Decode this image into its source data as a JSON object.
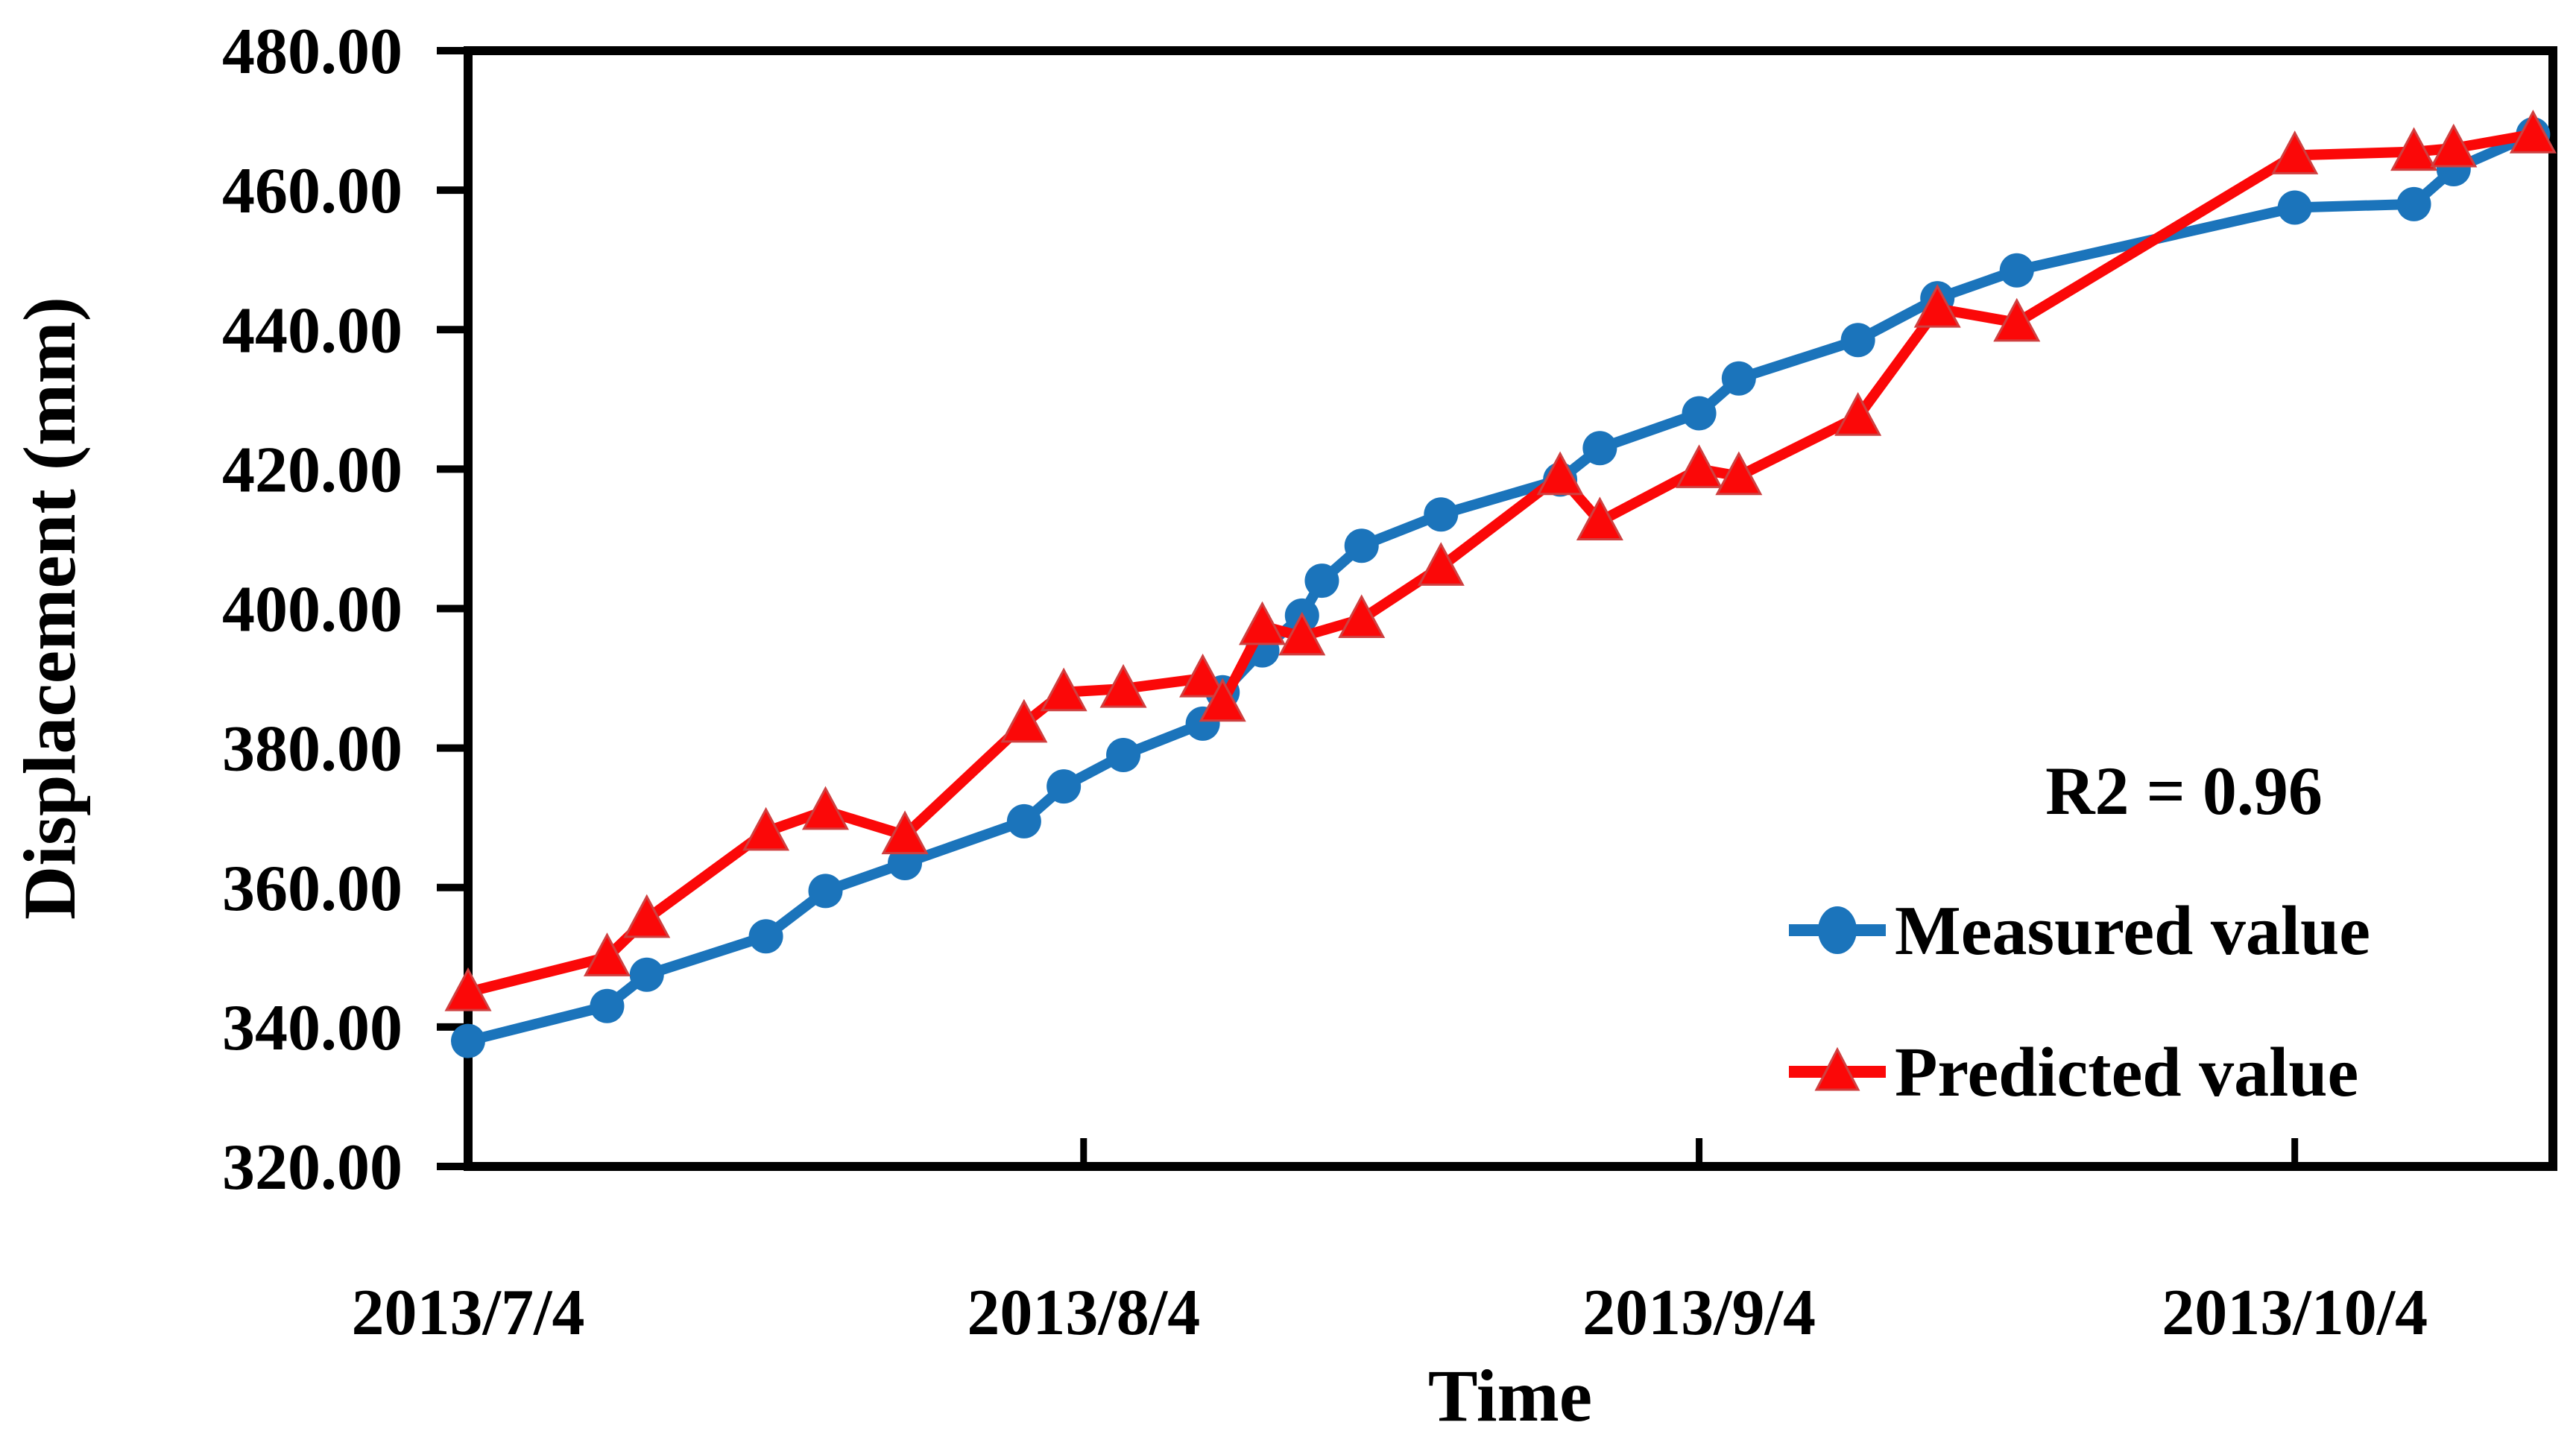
{
  "chart": {
    "ylabel": "Displacement  (mm)",
    "xlabel": "Time",
    "annotation": "R2 = 0.96",
    "legend": [
      {
        "label": "Measured value",
        "marker": "circle"
      },
      {
        "label": "Predicted value",
        "marker": "triangle"
      }
    ]
  },
  "chart_data": {
    "type": "line",
    "title": "",
    "xlabel": "Time",
    "ylabel": "Displacement  (mm)",
    "annotation": "R2 = 0.96",
    "grid": false,
    "legend_position": "lower right inside",
    "x_unit": "days since 2013/7/4",
    "xlim": [
      0,
      105
    ],
    "ylim": [
      320,
      480
    ],
    "y_tick_step": 20,
    "y_tick_labels": [
      "320.00",
      "340.00",
      "360.00",
      "380.00",
      "400.00",
      "420.00",
      "440.00",
      "460.00",
      "480.00"
    ],
    "x_ticks": [
      {
        "day": 0,
        "label": "2013/7/4"
      },
      {
        "day": 31,
        "label": "2013/8/4"
      },
      {
        "day": 62,
        "label": "2013/9/4"
      },
      {
        "day": 92,
        "label": "2013/10/4"
      }
    ],
    "series": [
      {
        "name": "Measured value",
        "color": "#1b74bb",
        "marker": "circle",
        "points": [
          {
            "date": "2013/7/4",
            "day": 0,
            "value": 338.0
          },
          {
            "date": "2013/7/11",
            "day": 7,
            "value": 343.0
          },
          {
            "date": "2013/7/13",
            "day": 9,
            "value": 347.5
          },
          {
            "date": "2013/7/19",
            "day": 15,
            "value": 353.0
          },
          {
            "date": "2013/7/22",
            "day": 18,
            "value": 359.5
          },
          {
            "date": "2013/7/26",
            "day": 22,
            "value": 363.5
          },
          {
            "date": "2013/8/1",
            "day": 28,
            "value": 369.5
          },
          {
            "date": "2013/8/3",
            "day": 30,
            "value": 374.5
          },
          {
            "date": "2013/8/6",
            "day": 33,
            "value": 379.0
          },
          {
            "date": "2013/8/10",
            "day": 37,
            "value": 383.5
          },
          {
            "date": "2013/8/11",
            "day": 38,
            "value": 388.0
          },
          {
            "date": "2013/8/13",
            "day": 40,
            "value": 394.0
          },
          {
            "date": "2013/8/15",
            "day": 42,
            "value": 399.0
          },
          {
            "date": "2013/8/16",
            "day": 43,
            "value": 404.0
          },
          {
            "date": "2013/8/18",
            "day": 45,
            "value": 409.0
          },
          {
            "date": "2013/8/22",
            "day": 49,
            "value": 413.5
          },
          {
            "date": "2013/8/28",
            "day": 55,
            "value": 418.5
          },
          {
            "date": "2013/8/30",
            "day": 57,
            "value": 423.0
          },
          {
            "date": "2013/9/4",
            "day": 62,
            "value": 428.0
          },
          {
            "date": "2013/9/6",
            "day": 64,
            "value": 433.0
          },
          {
            "date": "2013/9/12",
            "day": 70,
            "value": 438.5
          },
          {
            "date": "2013/9/16",
            "day": 74,
            "value": 444.5
          },
          {
            "date": "2013/9/20",
            "day": 78,
            "value": 448.5
          },
          {
            "date": "2013/10/4",
            "day": 92,
            "value": 457.5
          },
          {
            "date": "2013/10/10",
            "day": 98,
            "value": 458.0
          },
          {
            "date": "2013/10/12",
            "day": 100,
            "value": 463.0
          },
          {
            "date": "2013/10/16",
            "day": 104,
            "value": 468.0
          }
        ]
      },
      {
        "name": "Predicted value",
        "color": "#fb0808",
        "marker": "triangle",
        "points": [
          {
            "date": "2013/7/4",
            "day": 0,
            "value": 345.0
          },
          {
            "date": "2013/7/11",
            "day": 7,
            "value": 350.0
          },
          {
            "date": "2013/7/13",
            "day": 9,
            "value": 355.5
          },
          {
            "date": "2013/7/19",
            "day": 15,
            "value": 368.0
          },
          {
            "date": "2013/7/22",
            "day": 18,
            "value": 371.0
          },
          {
            "date": "2013/7/26",
            "day": 22,
            "value": 367.5
          },
          {
            "date": "2013/8/1",
            "day": 28,
            "value": 383.5
          },
          {
            "date": "2013/8/3",
            "day": 30,
            "value": 388.0
          },
          {
            "date": "2013/8/6",
            "day": 33,
            "value": 388.5
          },
          {
            "date": "2013/8/10",
            "day": 37,
            "value": 390.0
          },
          {
            "date": "2013/8/11",
            "day": 38,
            "value": 386.5
          },
          {
            "date": "2013/8/13",
            "day": 40,
            "value": 397.5
          },
          {
            "date": "2013/8/15",
            "day": 42,
            "value": 396.0
          },
          {
            "date": "2013/8/18",
            "day": 45,
            "value": 398.5
          },
          {
            "date": "2013/8/22",
            "day": 49,
            "value": 406.0
          },
          {
            "date": "2013/8/28",
            "day": 55,
            "value": 419.0
          },
          {
            "date": "2013/8/30",
            "day": 57,
            "value": 412.5
          },
          {
            "date": "2013/9/4",
            "day": 62,
            "value": 420.0
          },
          {
            "date": "2013/9/6",
            "day": 64,
            "value": 419.0
          },
          {
            "date": "2013/9/12",
            "day": 70,
            "value": 427.5
          },
          {
            "date": "2013/9/16",
            "day": 74,
            "value": 443.0
          },
          {
            "date": "2013/9/20",
            "day": 78,
            "value": 441.0
          },
          {
            "date": "2013/10/4",
            "day": 92,
            "value": 465.0
          },
          {
            "date": "2013/10/10",
            "day": 98,
            "value": 465.5
          },
          {
            "date": "2013/10/12",
            "day": 100,
            "value": 466.0
          },
          {
            "date": "2013/10/16",
            "day": 104,
            "value": 468.0
          }
        ]
      }
    ]
  }
}
